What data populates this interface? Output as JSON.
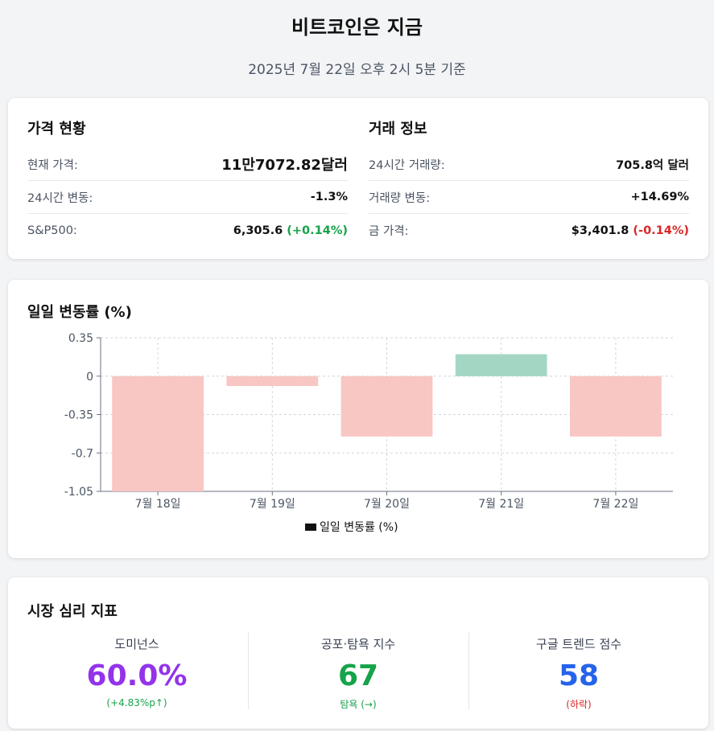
{
  "header": {
    "title": "비트코인은 지금",
    "subtitle": "2025년 7월 22일 오후 2시 5분 기준"
  },
  "price": {
    "title": "가격 현황",
    "rows": [
      {
        "label": "현재 가격:",
        "value": "11만7072.82달러"
      },
      {
        "label": "24시간 변동:",
        "value": "-1.3%"
      },
      {
        "label": "S&P500:",
        "value": "6,305.6",
        "change": "(+0.14%)"
      }
    ]
  },
  "trade": {
    "title": "거래 정보",
    "rows": [
      {
        "label": "24시간 거래량:",
        "value": "705.8억 달러"
      },
      {
        "label": "거래량 변동:",
        "value": "+14.69%"
      },
      {
        "label": "금 가격:",
        "value": "$3,401.8",
        "change": "(-0.14%)"
      }
    ]
  },
  "colors": {
    "negative": "#dc2626",
    "positive": "#16a34a",
    "bar_negative": "#f8c6c3",
    "bar_positive": "#a3d7c4",
    "dominance": "#9333ea",
    "fear_greed": "#16a34a",
    "trends": "#2563eb"
  },
  "chart_data": {
    "type": "bar",
    "title": "일일 변동률 (%)",
    "categories": [
      "7월 18일",
      "7월 19일",
      "7월 20일",
      "7월 21일",
      "7월 22일"
    ],
    "series": [
      {
        "name": "일일 변동률 (%)",
        "values": [
          -1.05,
          -0.09,
          -0.55,
          0.2,
          -0.55
        ]
      }
    ],
    "ylim": [
      -1.05,
      0.35
    ],
    "yticks": [
      0.35,
      0,
      -0.35,
      -0.7,
      -1.05
    ],
    "ytick_labels": [
      "0.35",
      "0",
      "-0.35",
      "-0.7",
      "-1.05"
    ],
    "grid": true,
    "legend": "bottom"
  },
  "sentiment": {
    "title": "시장 심리 지표",
    "metrics": [
      {
        "label": "도미넌스",
        "value": "60.0%",
        "sub": "(+4.83%p↑)"
      },
      {
        "label": "공포·탐욕 지수",
        "value": "67",
        "sub": "탐욕 (→)"
      },
      {
        "label": "구글 트렌드 점수",
        "value": "58",
        "sub": "(하락)"
      }
    ]
  }
}
